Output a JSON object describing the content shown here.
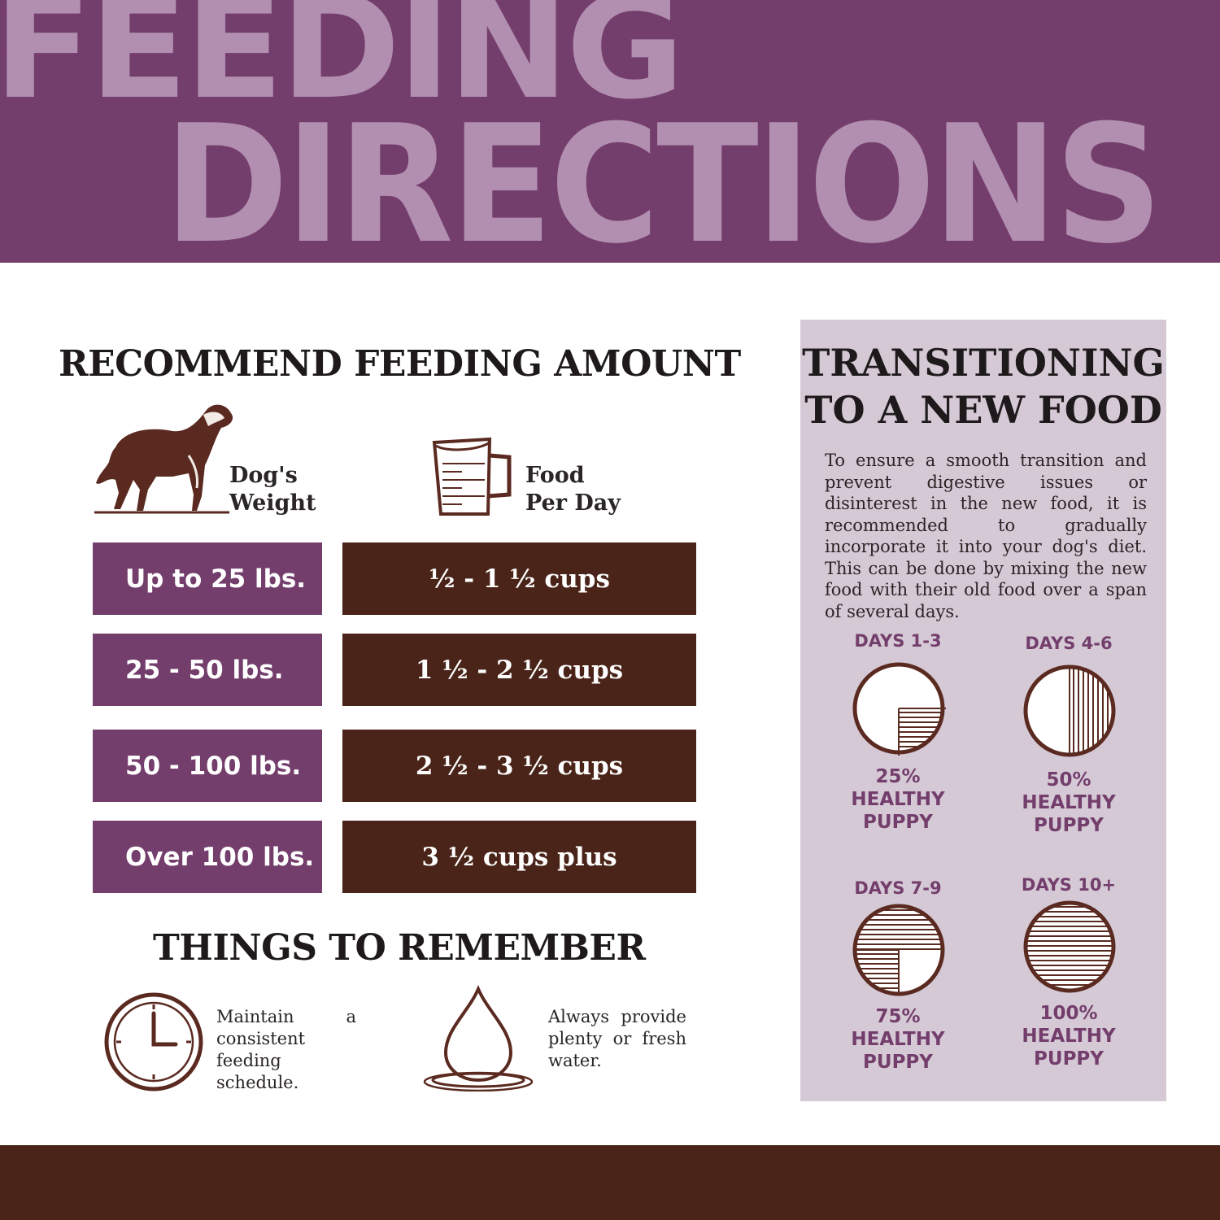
{
  "banner": {
    "line1": "FEEDING",
    "line2": "DIRECTIONS"
  },
  "feeding": {
    "title": "RECOMMEND FEEDING AMOUNT",
    "weight_header": "Dog's\nWeight",
    "food_header": "Food\nPer Day",
    "rows": [
      {
        "weight": "Up to 25 lbs.",
        "food": "½ - 1 ½ cups"
      },
      {
        "weight": "25  - 50 lbs.",
        "food": "1 ½ - 2 ½ cups"
      },
      {
        "weight": "50 -  100 lbs.",
        "food": "2 ½ - 3 ½ cups"
      },
      {
        "weight": "Over 100 lbs.",
        "food": "3 ½ cups plus"
      }
    ]
  },
  "remember": {
    "title": "THINGS TO REMEMBER",
    "items": [
      {
        "icon": "clock-icon",
        "text": "Maintain a consistent feeding schedule."
      },
      {
        "icon": "water-drop-icon",
        "text": "Always provide plenty or fresh water."
      }
    ]
  },
  "transition": {
    "title": "TRANSITIONING TO A NEW FOOD",
    "text": "To ensure a smooth transition and prevent digestive issues or disinterest in the new food, it is recommended to gradually incorporate it into your dog's diet. This can be done by mixing the new food with their old food over a span of several days.",
    "stages": [
      {
        "days": "DAYS 1-3",
        "label": "25%\nHEALTHY\nPUPPY",
        "fraction": 0.25
      },
      {
        "days": "DAYS 4-6",
        "label": "50%\nHEALTHY\nPUPPY",
        "fraction": 0.5
      },
      {
        "days": "DAYS 7-9",
        "label": "75%\nHEALTHY\nPUPPY",
        "fraction": 0.75
      },
      {
        "days": "DAYS 10+",
        "label": "100%\nHEALTHY\nPUPPY",
        "fraction": 1.0
      }
    ]
  },
  "colors": {
    "purple": "#743e6c",
    "light_purple": "#b28fb0",
    "brown": "#4a2418",
    "panel": "#d5c9d6"
  }
}
